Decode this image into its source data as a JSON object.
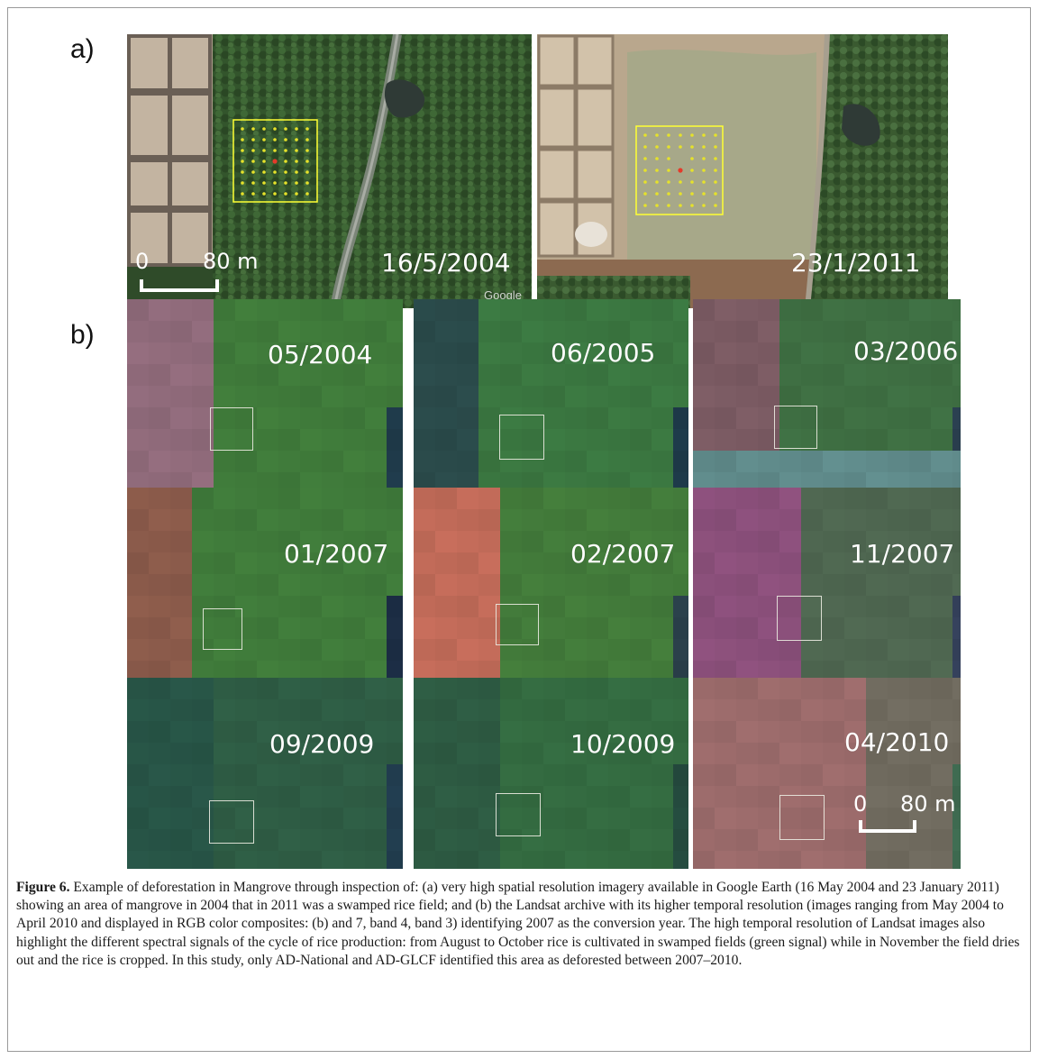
{
  "panel_a": {
    "label": "a)",
    "left_image": {
      "date": "16/5/2004",
      "scale_zero": "0",
      "scale_end": "80 m",
      "credit": "Google"
    },
    "right_image": {
      "date": "23/1/2011"
    }
  },
  "panel_b": {
    "label": "b)",
    "tiles": [
      {
        "date": "05/2004"
      },
      {
        "date": "06/2005"
      },
      {
        "date": "03/2006"
      },
      {
        "date": "01/2007"
      },
      {
        "date": "02/2007"
      },
      {
        "date": "11/2007"
      },
      {
        "date": "09/2009"
      },
      {
        "date": "10/2009"
      },
      {
        "date": "04/2010"
      }
    ],
    "scale_zero": "0",
    "scale_end": "80 m"
  },
  "caption": {
    "label": "Figure 6.",
    "text": "Example of deforestation in Mangrove through inspection of: (a) very high spatial resolution imagery available in Google Earth (16 May 2004 and 23 January 2011) showing an area of mangrove in 2004 that in 2011 was a swamped rice field; and (b) the Landsat archive with its higher temporal resolution (images ranging from May 2004 to April 2010 and displayed in RGB color composites: (b) and 7, band 4, band 3) identifying 2007 as the conversion year. The high temporal resolution of Landsat images also highlight the different spectral signals of the cycle of rice production: from August to October rice is cultivated in swamped fields (green signal) while in November the field dries out and the rice is cropped. In this study, only AD-National and AD-GLCF identified this area as deforested between 2007–2010."
  },
  "colors": {
    "vegetation": "#3f7a3a",
    "soil": "#c9b8a2",
    "grid": "#ffff33",
    "center_point": "#e53a2a"
  }
}
